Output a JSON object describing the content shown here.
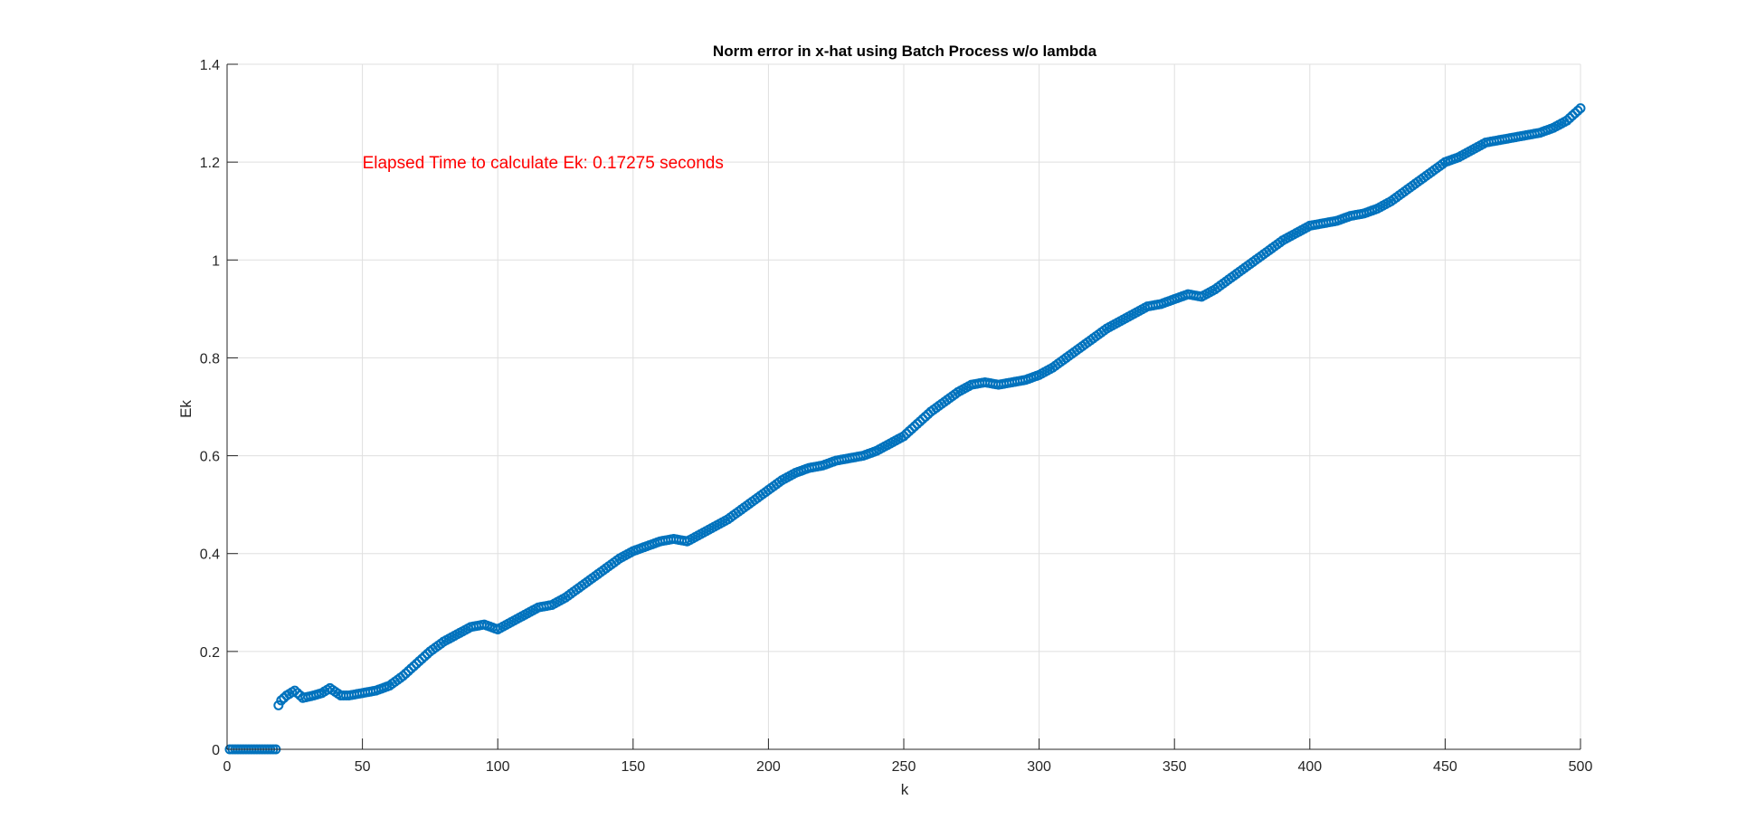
{
  "chart_data": {
    "type": "scatter",
    "title": "Norm error in x-hat using Batch Process w/o lambda",
    "xlabel": "k",
    "ylabel": "Ek",
    "xlim": [
      0,
      500
    ],
    "ylim": [
      0,
      1.4
    ],
    "xticks": [
      0,
      50,
      100,
      150,
      200,
      250,
      300,
      350,
      400,
      450,
      500
    ],
    "yticks": [
      0,
      0.2,
      0.4,
      0.6,
      0.8,
      1,
      1.2,
      1.4
    ],
    "xtick_labels": [
      "0",
      "50",
      "100",
      "150",
      "200",
      "250",
      "300",
      "350",
      "400",
      "450",
      "500"
    ],
    "ytick_labels": [
      "0",
      "0.2",
      "0.4",
      "0.6",
      "0.8",
      "1",
      "1.2",
      "1.4"
    ],
    "grid": true,
    "marker": "circle",
    "color": "#0072bd",
    "annotation": {
      "text": "Elapsed Time to calculate Ek: 0.17275 seconds",
      "x": 50,
      "y": 1.2,
      "color": "#ff0000"
    },
    "series": [
      {
        "x": [
          1,
          2,
          3,
          4,
          5,
          6,
          7,
          8,
          9,
          10,
          11,
          12,
          13,
          14,
          15,
          16,
          17,
          18,
          19,
          20,
          22,
          25,
          28,
          32,
          35,
          38,
          42,
          45,
          50,
          55,
          60,
          65,
          70,
          75,
          80,
          85,
          90,
          95,
          100,
          105,
          110,
          115,
          120,
          125,
          130,
          135,
          140,
          145,
          150,
          155,
          160,
          165,
          170,
          175,
          180,
          185,
          190,
          195,
          200,
          205,
          210,
          215,
          220,
          225,
          230,
          235,
          240,
          245,
          250,
          255,
          260,
          265,
          270,
          275,
          280,
          285,
          290,
          295,
          300,
          305,
          310,
          315,
          320,
          325,
          330,
          335,
          340,
          345,
          350,
          355,
          360,
          365,
          370,
          375,
          380,
          385,
          390,
          395,
          400,
          405,
          410,
          415,
          420,
          425,
          430,
          435,
          440,
          445,
          450,
          455,
          460,
          465,
          470,
          475,
          480,
          485,
          490,
          495,
          500
        ],
        "y": [
          0,
          0,
          0,
          0,
          0,
          0,
          0,
          0,
          0,
          0,
          0,
          0,
          0,
          0,
          0,
          0,
          0,
          0,
          0.09,
          0.1,
          0.11,
          0.12,
          0.105,
          0.11,
          0.115,
          0.125,
          0.11,
          0.11,
          0.115,
          0.12,
          0.13,
          0.15,
          0.175,
          0.2,
          0.22,
          0.235,
          0.25,
          0.255,
          0.245,
          0.26,
          0.275,
          0.29,
          0.295,
          0.31,
          0.33,
          0.35,
          0.37,
          0.39,
          0.405,
          0.415,
          0.425,
          0.43,
          0.425,
          0.44,
          0.455,
          0.47,
          0.49,
          0.51,
          0.53,
          0.55,
          0.565,
          0.575,
          0.58,
          0.59,
          0.595,
          0.6,
          0.61,
          0.625,
          0.64,
          0.665,
          0.69,
          0.71,
          0.73,
          0.745,
          0.75,
          0.745,
          0.75,
          0.755,
          0.765,
          0.78,
          0.8,
          0.82,
          0.84,
          0.86,
          0.875,
          0.89,
          0.905,
          0.91,
          0.92,
          0.93,
          0.925,
          0.94,
          0.96,
          0.98,
          1.0,
          1.02,
          1.04,
          1.055,
          1.07,
          1.075,
          1.08,
          1.09,
          1.095,
          1.105,
          1.12,
          1.14,
          1.16,
          1.18,
          1.2,
          1.21,
          1.225,
          1.24,
          1.245,
          1.25,
          1.255,
          1.26,
          1.27,
          1.285,
          1.31
        ]
      }
    ]
  }
}
